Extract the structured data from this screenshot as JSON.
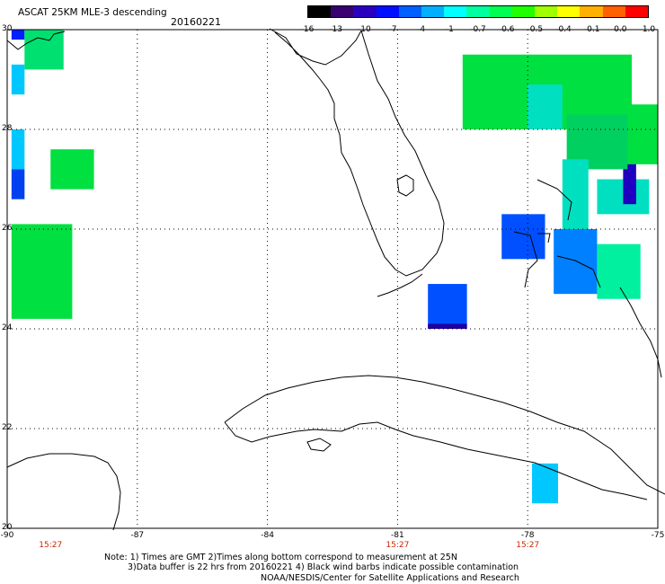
{
  "header": {
    "title": "ASCAT 25KM MLE-3 descending",
    "date": "20160221"
  },
  "colorbar": {
    "labels": [
      "-16",
      "-13",
      "-10",
      "-7",
      "-4",
      "-1",
      "-0.7",
      "-0.6",
      "-0.5",
      "-0.4",
      "-0.1",
      "0.0",
      "1.0"
    ],
    "colors": [
      "#000000",
      "#3a0070",
      "#2a00c0",
      "#0010ff",
      "#0060ff",
      "#00b0ff",
      "#00ffff",
      "#00ffa0",
      "#00ff50",
      "#20ff00",
      "#a0ff00",
      "#ffff00",
      "#ffb000",
      "#ff6000",
      "#ff0000"
    ]
  },
  "axes": {
    "lat_labels": [
      "30",
      "28",
      "26",
      "24",
      "22",
      "20"
    ],
    "lon_labels": [
      "-90",
      "-87",
      "-84",
      "-81",
      "-78",
      "-75"
    ],
    "time_labels": [
      "15:27",
      "15:27",
      "15:27"
    ]
  },
  "notes": {
    "line1": "Note: 1) Times are GMT  2)Times along bottom correspond to measurement at 25N",
    "line2": "3)Data buffer is 22 hrs from 20160221  4) Black wind barbs indicate possible contamination",
    "line3": "NOAA/NESDIS/Center for Satellite Applications and Research"
  },
  "map_data": {
    "lon_range": [
      -90,
      -75
    ],
    "lat_range": [
      20,
      30
    ],
    "cells": [
      {
        "lon": [
          -89.9,
          -89.6
        ],
        "lat": [
          29.8,
          30.0
        ],
        "color": "#0020ff"
      },
      {
        "lon": [
          -89.6,
          -88.7
        ],
        "lat": [
          29.2,
          30.0
        ],
        "color": "#00e070"
      },
      {
        "lon": [
          -89.9,
          -89.6
        ],
        "lat": [
          28.7,
          29.3
        ],
        "color": "#00c8ff"
      },
      {
        "lon": [
          -89.9,
          -89.6
        ],
        "lat": [
          27.2,
          28.0
        ],
        "color": "#00c8ff"
      },
      {
        "lon": [
          -89.9,
          -89.6
        ],
        "lat": [
          26.6,
          27.2
        ],
        "color": "#0040f0"
      },
      {
        "lon": [
          -89.0,
          -88.0
        ],
        "lat": [
          26.8,
          27.6
        ],
        "color": "#00e040"
      },
      {
        "lon": [
          -89.9,
          -88.5
        ],
        "lat": [
          24.2,
          26.1
        ],
        "color": "#00e040"
      },
      {
        "lon": [
          -80.3,
          -79.4
        ],
        "lat": [
          24.0,
          24.9
        ],
        "color": "#0050ff"
      },
      {
        "lon": [
          -80.3,
          -79.4
        ],
        "lat": [
          24.0,
          24.1
        ],
        "color": "#2000a0"
      },
      {
        "lon": [
          -78.6,
          -77.6
        ],
        "lat": [
          25.4,
          26.3
        ],
        "color": "#0050ff"
      },
      {
        "lon": [
          -77.4,
          -76.4
        ],
        "lat": [
          24.7,
          26.0
        ],
        "color": "#0080ff"
      },
      {
        "lon": [
          -76.4,
          -75.4
        ],
        "lat": [
          24.6,
          25.7
        ],
        "color": "#00f0a0"
      },
      {
        "lon": [
          -76.4,
          -75.2
        ],
        "lat": [
          26.3,
          27.0
        ],
        "color": "#00e0c0"
      },
      {
        "lon": [
          -75.8,
          -75.5
        ],
        "lat": [
          26.5,
          27.8
        ],
        "color": "#2000c0"
      },
      {
        "lon": [
          -79.5,
          -75.6
        ],
        "lat": [
          28.0,
          29.5
        ],
        "color": "#00e040"
      },
      {
        "lon": [
          -76.0,
          -75.0
        ],
        "lat": [
          27.3,
          28.5
        ],
        "color": "#00e040"
      },
      {
        "lon": [
          -77.1,
          -75.7
        ],
        "lat": [
          27.2,
          28.3
        ],
        "color": "#00d060"
      },
      {
        "lon": [
          -78.0,
          -77.2
        ],
        "lat": [
          28.0,
          28.9
        ],
        "color": "#00e0c0"
      },
      {
        "lon": [
          -77.2,
          -76.6
        ],
        "lat": [
          26.0,
          27.4
        ],
        "color": "#00e0c0"
      },
      {
        "lon": [
          -77.9,
          -77.3
        ],
        "lat": [
          20.5,
          21.3
        ],
        "color": "#00c8ff"
      }
    ]
  }
}
